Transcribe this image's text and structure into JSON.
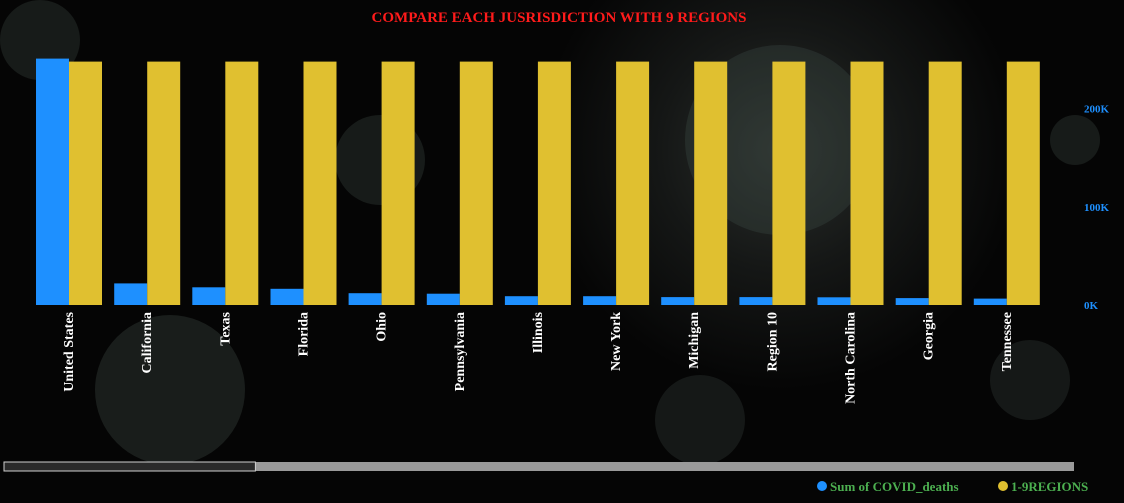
{
  "colors": {
    "series1": "#1e90ff",
    "series2": "#e0c030",
    "title": "#ff1b1b",
    "ticks": "#1e90ff",
    "legend_text": "#4caf50",
    "scrollbar_track": "#9a9a9a",
    "scrollbar_thumb": "#2a2a2a"
  },
  "scrollbar": {
    "position": 0,
    "visible_fraction": 0.235
  },
  "chart_data": {
    "type": "bar",
    "title": "COMPARE EACH JUSRISDICTION WITH 9 REGIONS",
    "categories": [
      "United States",
      "California",
      "Texas",
      "Florida",
      "Ohio",
      "Pennsylvania",
      "Illinois",
      "New York",
      "Michigan",
      "Region 10",
      "North Carolina",
      "Georgia",
      "Tennessee"
    ],
    "series": [
      {
        "name": "Sum of COVID_deaths",
        "values": [
          251000,
          22000,
          18000,
          16500,
          12000,
          11500,
          9000,
          9000,
          8000,
          8000,
          7800,
          7000,
          6500
        ]
      },
      {
        "name": "1-9REGIONS",
        "values": [
          248000,
          248000,
          248000,
          248000,
          248000,
          248000,
          248000,
          248000,
          248000,
          248000,
          248000,
          248000,
          248000
        ]
      }
    ],
    "yticks": [
      0,
      100000,
      200000
    ],
    "ytick_labels": [
      "0K",
      "100K",
      "200K"
    ],
    "ylim": [
      0,
      270000
    ],
    "grid": false,
    "legend_position": "bottom-right"
  }
}
